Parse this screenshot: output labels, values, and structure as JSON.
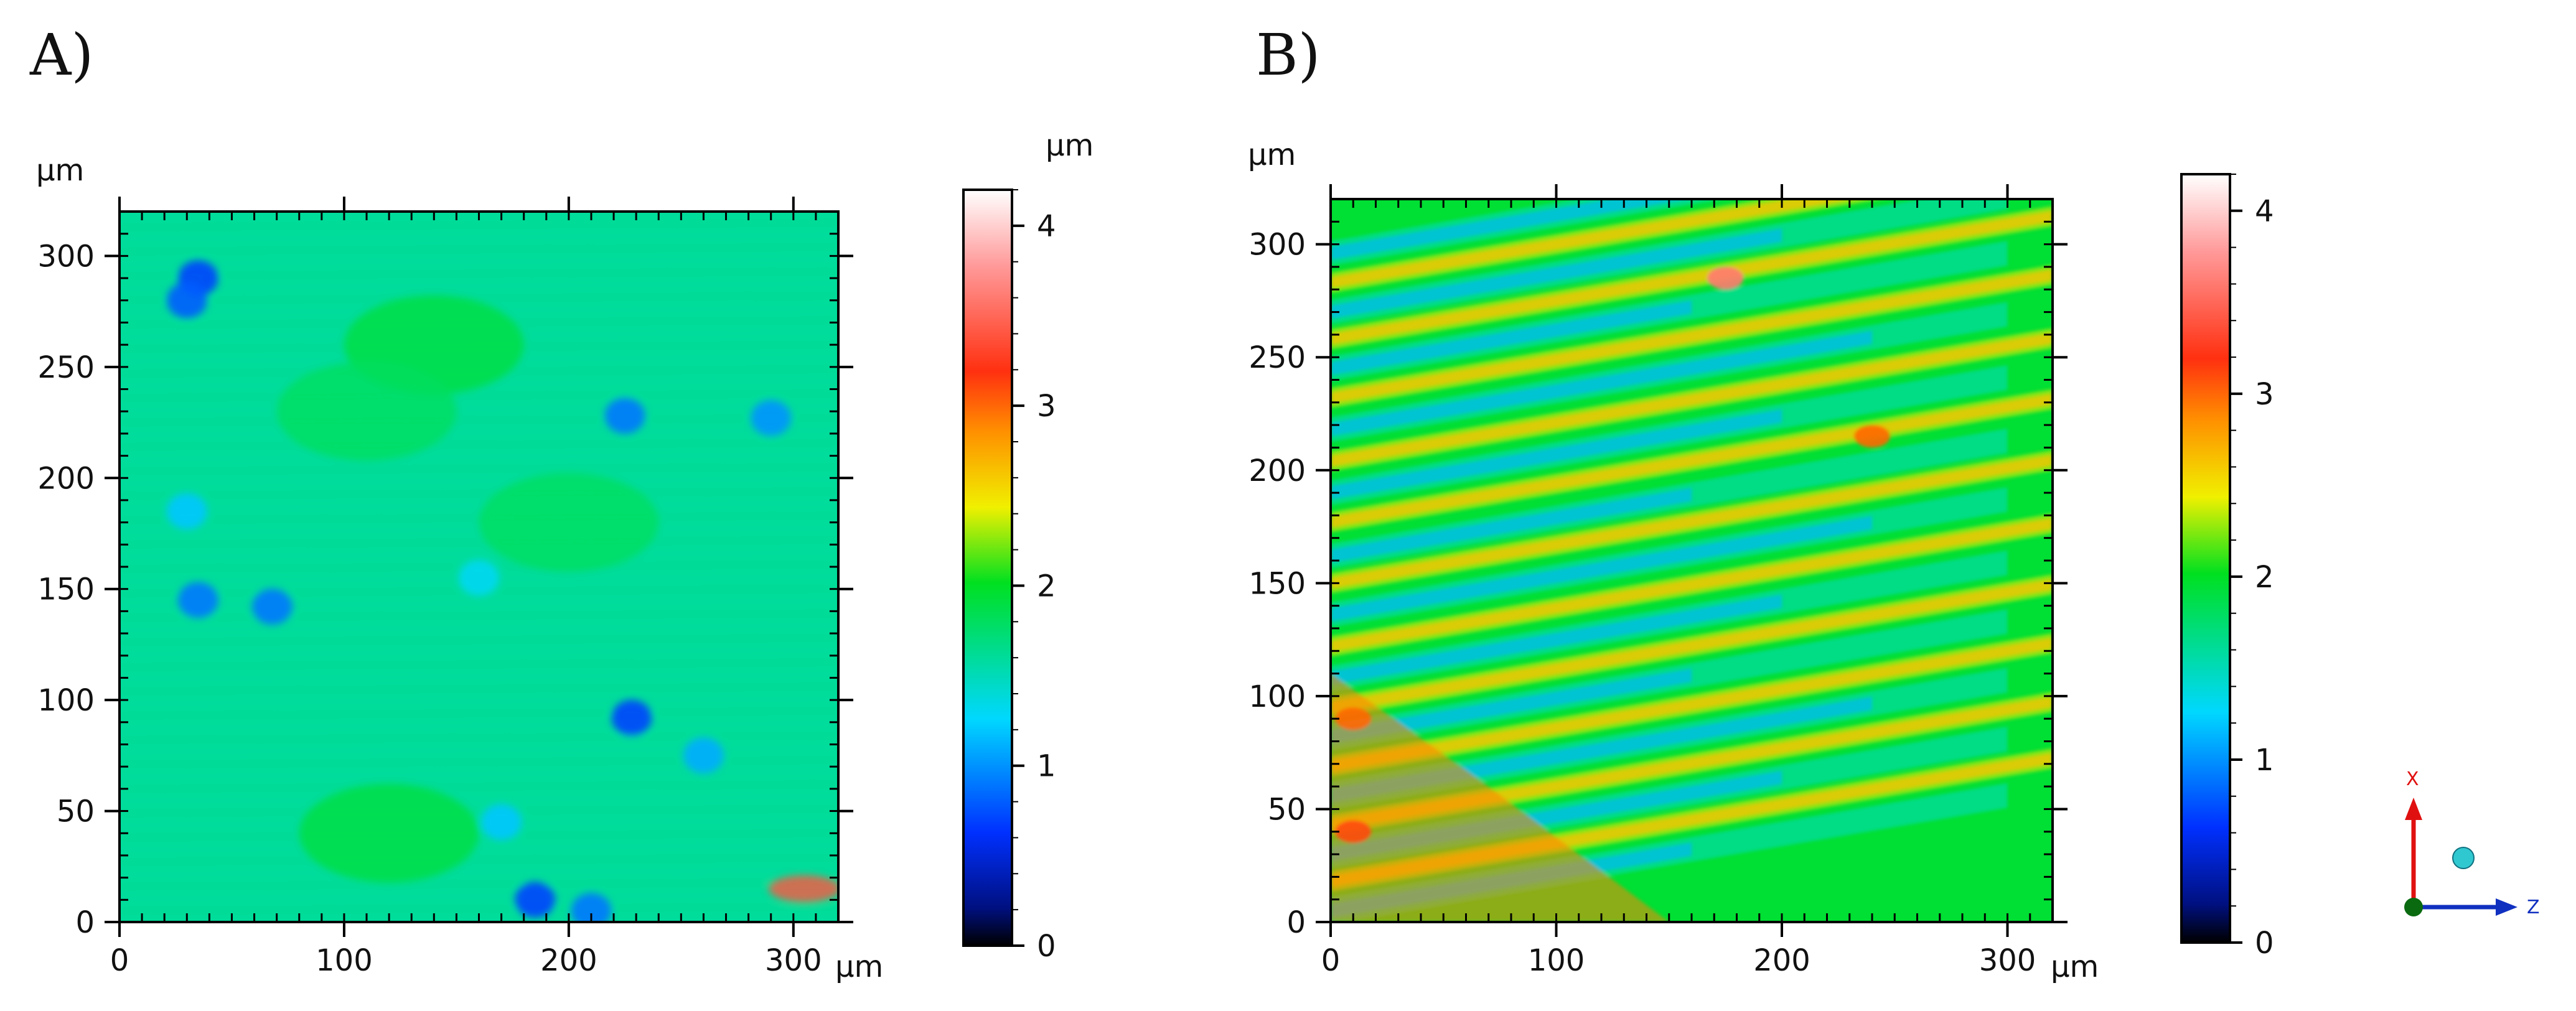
{
  "chart_data": [
    {
      "panel_label": "A)",
      "type": "heatmap",
      "title": "",
      "xlabel": "",
      "ylabel": "",
      "x_unit": "μm",
      "y_unit": "μm",
      "x_ticks": [
        0,
        100,
        200,
        300
      ],
      "y_ticks": [
        0,
        50,
        100,
        150,
        200,
        250,
        300
      ],
      "xlim": [
        0,
        320
      ],
      "ylim": [
        0,
        320
      ],
      "colorbar": {
        "unit": "μm",
        "ticks": [
          0,
          1,
          2,
          3,
          4
        ],
        "range": [
          0,
          4.2
        ]
      },
      "base_height": 1.6,
      "pits": [
        {
          "x": 35,
          "y": 290,
          "depth": 0.9
        },
        {
          "x": 30,
          "y": 280,
          "depth": 0.8
        },
        {
          "x": 225,
          "y": 228,
          "depth": 0.7
        },
        {
          "x": 290,
          "y": 227,
          "depth": 0.6
        },
        {
          "x": 35,
          "y": 145,
          "depth": 0.7
        },
        {
          "x": 68,
          "y": 142,
          "depth": 0.7
        },
        {
          "x": 228,
          "y": 92,
          "depth": 0.9
        },
        {
          "x": 260,
          "y": 75,
          "depth": 0.5
        },
        {
          "x": 185,
          "y": 10,
          "depth": 0.9
        },
        {
          "x": 210,
          "y": 5,
          "depth": 0.7
        },
        {
          "x": 160,
          "y": 155,
          "depth": 0.3
        },
        {
          "x": 30,
          "y": 185,
          "depth": 0.4
        },
        {
          "x": 170,
          "y": 45,
          "depth": 0.4
        }
      ],
      "bumps": [
        {
          "x": 140,
          "y": 260,
          "height": 0.3
        },
        {
          "x": 110,
          "y": 230,
          "height": 0.2
        },
        {
          "x": 120,
          "y": 40,
          "height": 0.3
        },
        {
          "x": 200,
          "y": 180,
          "height": 0.2
        },
        {
          "x": 305,
          "y": 15,
          "height": 1.8
        }
      ]
    },
    {
      "panel_label": "B)",
      "type": "heatmap",
      "title": "",
      "xlabel": "",
      "ylabel": "",
      "x_unit": "μm",
      "y_unit": "μm",
      "x_ticks": [
        0,
        100,
        200,
        300
      ],
      "y_ticks": [
        0,
        50,
        100,
        150,
        200,
        250,
        300
      ],
      "xlim": [
        0,
        320
      ],
      "ylim": [
        0,
        320
      ],
      "colorbar": {
        "unit": "",
        "ticks": [
          0,
          1,
          2,
          3,
          4
        ],
        "range": [
          0,
          4.2
        ]
      },
      "stripe_slope": 0.17,
      "blue_stripes_y0": [
        296,
        270,
        245,
        218,
        190,
        162,
        136,
        108,
        82,
        56,
        30,
        5
      ],
      "orange_stripes_y0": [
        283,
        258,
        232,
        204,
        177,
        150,
        122,
        95,
        69,
        43,
        18
      ],
      "hot_spots": [
        {
          "x": 175,
          "y": 285,
          "height": 3.6
        },
        {
          "x": 10,
          "y": 40,
          "height": 3.1
        },
        {
          "x": 10,
          "y": 90,
          "height": 3.0
        },
        {
          "x": 240,
          "y": 215,
          "height": 3.0
        }
      ]
    }
  ],
  "axis_indicator": {
    "x_label": "X",
    "z_label": "Z"
  }
}
